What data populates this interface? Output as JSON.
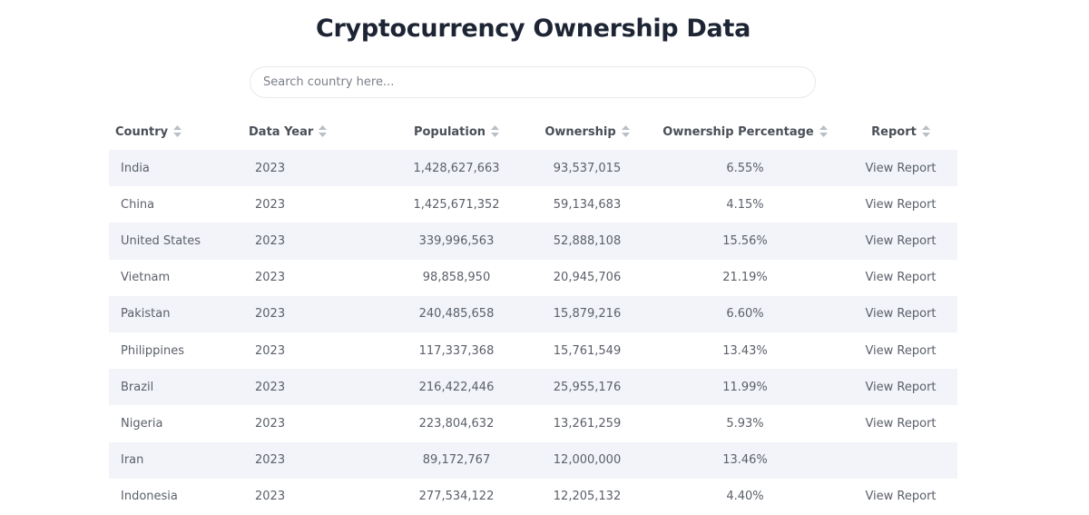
{
  "page": {
    "title": "Cryptocurrency Ownership Data"
  },
  "search": {
    "placeholder": "Search country here...",
    "value": ""
  },
  "table": {
    "headers": {
      "country": "Country",
      "data_year": "Data Year",
      "population": "Population",
      "ownership": "Ownership",
      "ownership_percentage": "Ownership Percentage",
      "report": "Report"
    },
    "rows": [
      {
        "country": "India",
        "year": "2023",
        "population": "1,428,627,663",
        "ownership": "93,537,015",
        "percentage": "6.55%",
        "report": "View Report"
      },
      {
        "country": "China",
        "year": "2023",
        "population": "1,425,671,352",
        "ownership": "59,134,683",
        "percentage": "4.15%",
        "report": "View Report"
      },
      {
        "country": "United States",
        "year": "2023",
        "population": "339,996,563",
        "ownership": "52,888,108",
        "percentage": "15.56%",
        "report": "View Report"
      },
      {
        "country": "Vietnam",
        "year": "2023",
        "population": "98,858,950",
        "ownership": "20,945,706",
        "percentage": "21.19%",
        "report": "View Report"
      },
      {
        "country": "Pakistan",
        "year": "2023",
        "population": "240,485,658",
        "ownership": "15,879,216",
        "percentage": "6.60%",
        "report": "View Report"
      },
      {
        "country": "Philippines",
        "year": "2023",
        "population": "117,337,368",
        "ownership": "15,761,549",
        "percentage": "13.43%",
        "report": "View Report"
      },
      {
        "country": "Brazil",
        "year": "2023",
        "population": "216,422,446",
        "ownership": "25,955,176",
        "percentage": "11.99%",
        "report": "View Report"
      },
      {
        "country": "Nigeria",
        "year": "2023",
        "population": "223,804,632",
        "ownership": "13,261,259",
        "percentage": "5.93%",
        "report": "View Report"
      },
      {
        "country": "Iran",
        "year": "2023",
        "population": "89,172,767",
        "ownership": "12,000,000",
        "percentage": "13.46%",
        "report": ""
      },
      {
        "country": "Indonesia",
        "year": "2023",
        "population": "277,534,122",
        "ownership": "12,205,132",
        "percentage": "4.40%",
        "report": "View Report"
      }
    ]
  },
  "icons": {
    "sort": "sort-icon"
  },
  "colors": {
    "title": "#1d2535",
    "row_stripe": "#f2f4f9",
    "text": "#5b606a",
    "sort_icon": "#b9bec7"
  }
}
